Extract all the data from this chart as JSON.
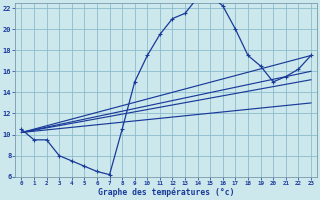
{
  "xlabel": "Graphe des températures (°c)",
  "bg_color": "#cce8ec",
  "grid_color": "#8cbccc",
  "line_color": "#1a3a9a",
  "hours": [
    0,
    1,
    2,
    3,
    4,
    5,
    6,
    7,
    8,
    9,
    10,
    11,
    12,
    13,
    14,
    15,
    16,
    17,
    18,
    19,
    20,
    21,
    22,
    23
  ],
  "temps": [
    10.5,
    9.5,
    9.5,
    8.0,
    7.5,
    7.0,
    6.5,
    6.2,
    10.5,
    15.0,
    17.5,
    19.5,
    21.0,
    21.5,
    23.0,
    23.2,
    22.2,
    20.0,
    17.5,
    16.5,
    15.0,
    15.5,
    16.2,
    17.5
  ],
  "xmin": -0.5,
  "xmax": 23.5,
  "ymin": 6,
  "ymax": 22.5,
  "yticks": [
    6,
    8,
    10,
    12,
    14,
    16,
    18,
    20,
    22
  ],
  "xticks": [
    0,
    1,
    2,
    3,
    4,
    5,
    6,
    7,
    8,
    9,
    10,
    11,
    12,
    13,
    14,
    15,
    16,
    17,
    18,
    19,
    20,
    21,
    22,
    23
  ],
  "trend_lines": [
    {
      "x0": 0,
      "y0": 10.2,
      "x1": 23,
      "y1": 13.0
    },
    {
      "x0": 0,
      "y0": 10.2,
      "x1": 23,
      "y1": 15.2
    },
    {
      "x0": 0,
      "y0": 10.2,
      "x1": 23,
      "y1": 16.0
    },
    {
      "x0": 0,
      "y0": 10.2,
      "x1": 23,
      "y1": 17.5
    }
  ]
}
